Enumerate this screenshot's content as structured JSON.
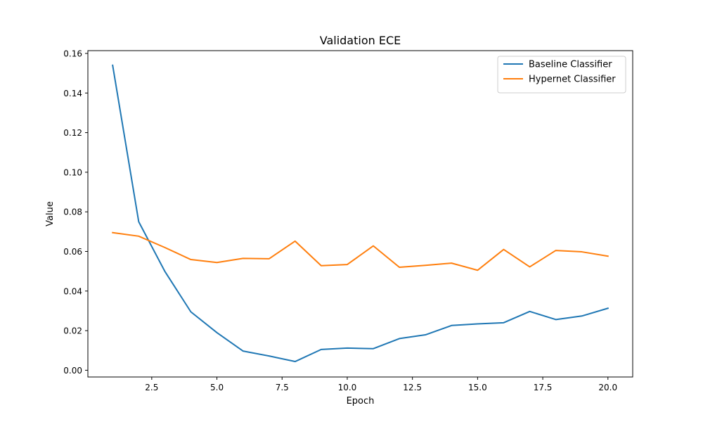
{
  "chart_data": {
    "type": "line",
    "title": "Validation ECE",
    "xlabel": "Epoch",
    "ylabel": "Value",
    "xlim": [
      0.05,
      20.95
    ],
    "ylim": [
      -0.0034,
      0.1614
    ],
    "xticks": [
      2.5,
      5.0,
      7.5,
      10.0,
      12.5,
      15.0,
      17.5,
      20.0
    ],
    "xtick_labels": [
      "2.5",
      "5.0",
      "7.5",
      "10.0",
      "12.5",
      "15.0",
      "17.5",
      "20.0"
    ],
    "yticks": [
      0.0,
      0.02,
      0.04,
      0.06,
      0.08,
      0.1,
      0.12,
      0.14,
      0.16
    ],
    "ytick_labels": [
      "0.00",
      "0.02",
      "0.04",
      "0.06",
      "0.08",
      "0.10",
      "0.12",
      "0.14",
      "0.16"
    ],
    "grid": false,
    "legend_position": "top-right",
    "x": [
      1,
      2,
      3,
      4,
      5,
      6,
      7,
      8,
      9,
      10,
      11,
      12,
      13,
      14,
      15,
      16,
      17,
      18,
      19,
      20
    ],
    "series": [
      {
        "name": "Baseline Classifier",
        "color": "#1f77b4",
        "values": [
          0.154,
          0.075,
          0.05,
          0.0295,
          0.019,
          0.0097,
          0.0072,
          0.0044,
          0.0105,
          0.0112,
          0.0109,
          0.016,
          0.0179,
          0.0226,
          0.0234,
          0.024,
          0.0297,
          0.0256,
          0.0274,
          0.0313
        ]
      },
      {
        "name": "Hypernet Classifier",
        "color": "#ff7f0e",
        "values": [
          0.0695,
          0.0677,
          0.062,
          0.0559,
          0.0544,
          0.0565,
          0.0563,
          0.0652,
          0.0528,
          0.0534,
          0.0628,
          0.052,
          0.053,
          0.0541,
          0.0505,
          0.061,
          0.0522,
          0.0605,
          0.0598,
          0.0576
        ]
      }
    ]
  }
}
